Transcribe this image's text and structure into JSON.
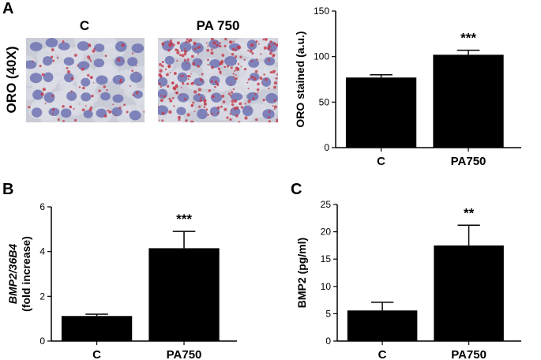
{
  "panels": {
    "A": {
      "letter": "A"
    },
    "B": {
      "letter": "B"
    },
    "C": {
      "letter": "C"
    }
  },
  "micrographs": {
    "row_label": "ORO (40X)",
    "titles": [
      "C",
      "PA 750"
    ],
    "stain_colors": {
      "background": "#c9cbd6",
      "nuclei": "#6e73b3",
      "lipid": "#c23a4a"
    }
  },
  "chart_data": [
    {
      "id": "A",
      "type": "bar",
      "categories": [
        "C",
        "PA750"
      ],
      "values": [
        77,
        102
      ],
      "errors": [
        3,
        5
      ],
      "significance": [
        "",
        "***"
      ],
      "title": "",
      "xlabel": "",
      "ylabel": "ORO stained (a.u.)",
      "ylim": [
        0,
        150
      ],
      "yticks": [
        0,
        50,
        100,
        150
      ],
      "grid": false,
      "bar_color": "#000000"
    },
    {
      "id": "B",
      "type": "bar",
      "categories": [
        "C",
        "PA750"
      ],
      "values": [
        1.12,
        4.15
      ],
      "errors": [
        0.08,
        0.75
      ],
      "significance": [
        "",
        "***"
      ],
      "title": "",
      "xlabel": "",
      "ylabel_lines": [
        "BMP2/36B4",
        "(fold increase)"
      ],
      "ylim": [
        0,
        6
      ],
      "yticks": [
        0,
        2,
        4,
        6
      ],
      "grid": false,
      "bar_color": "#000000"
    },
    {
      "id": "C",
      "type": "bar",
      "categories": [
        "C",
        "PA750"
      ],
      "values": [
        5.6,
        17.5
      ],
      "errors": [
        1.5,
        3.7
      ],
      "significance": [
        "",
        "**"
      ],
      "title": "",
      "xlabel": "",
      "ylabel": "BMP2 (pg/ml)",
      "ylim": [
        0,
        25
      ],
      "yticks": [
        0,
        5,
        10,
        15,
        20,
        25
      ],
      "grid": false,
      "bar_color": "#000000"
    }
  ]
}
